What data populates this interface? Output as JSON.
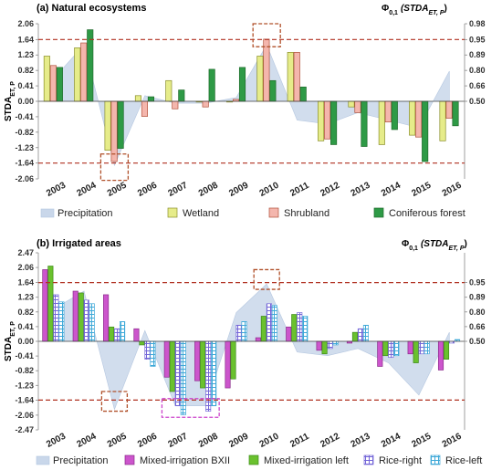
{
  "chart_data": [
    {
      "type": "bar",
      "title": "(a) Natural ecosystems",
      "ylabel": "STDA_ET, P",
      "ylabel_main": "STDA",
      "ylabel_sub": "ET, P",
      "right_label": "Φ0,1 (STDA_ET, P)",
      "right_label_main": "Φ",
      "right_label_sub": "0,1",
      "right_label_paren": "(STDA",
      "right_label_paren_sub": "ET, P",
      "right_label_close": ")",
      "categories": [
        "2003",
        "2004",
        "2005",
        "2006",
        "2007",
        "2008",
        "2009",
        "2010",
        "2011",
        "2012",
        "2013",
        "2014",
        "2015",
        "2016"
      ],
      "ylim": [
        -2.06,
        2.06
      ],
      "yticks": [
        "2.06",
        "1.64",
        "1.23",
        "0.82",
        "0.41",
        "0.00",
        "-0.41",
        "-0.82",
        "-1.23",
        "-1.64",
        "-2.06"
      ],
      "right_ticks": [
        "0.98",
        "0.95",
        "0.89",
        "0.80",
        "0.66",
        "0.50"
      ],
      "reference_lines": [
        1.64,
        -1.64
      ],
      "area_series": {
        "name": "Precipitation",
        "values": [
          0.6,
          1.5,
          -1.7,
          0.15,
          -0.05,
          -0.05,
          0.1,
          1.5,
          -0.5,
          -0.6,
          -0.3,
          -0.5,
          -0.7,
          0.8
        ]
      },
      "series": [
        {
          "name": "Wetland",
          "values": [
            1.2,
            1.42,
            -1.3,
            0.15,
            0.55,
            -0.02,
            -0.02,
            1.2,
            1.3,
            -1.05,
            -0.15,
            -1.15,
            -0.9,
            -1.05
          ]
        },
        {
          "name": "Shrubland",
          "values": [
            0.95,
            1.55,
            -1.6,
            -0.4,
            -0.2,
            -0.15,
            0.05,
            1.65,
            1.3,
            -1.0,
            -0.3,
            -0.55,
            -0.95,
            -0.45
          ]
        },
        {
          "name": "Coniferous forest",
          "values": [
            0.9,
            1.9,
            -1.25,
            0.12,
            0.3,
            0.85,
            0.9,
            0.55,
            0.38,
            -1.15,
            -1.2,
            -0.75,
            -1.6,
            -0.65
          ]
        }
      ]
    },
    {
      "type": "bar",
      "title": "(b) Irrigated areas",
      "ylabel": "STDA_ET, P",
      "ylabel_main": "STDA",
      "ylabel_sub": "ET, P",
      "right_label": "Φ0,1 (STDA_ET, P)",
      "right_label_main": "Φ",
      "right_label_sub": "0,1",
      "right_label_paren": "(STDA",
      "right_label_paren_sub": "ET, P",
      "right_label_close": ")",
      "categories": [
        "2003",
        "2004",
        "2005",
        "2006",
        "2007",
        "2008",
        "2009",
        "2010",
        "2011",
        "2012",
        "2013",
        "2014",
        "2015",
        "2016"
      ],
      "ylim": [
        -2.47,
        2.47
      ],
      "yticks": [
        "2.47",
        "2.06",
        "1.64",
        "1.23",
        "0.82",
        "0.41",
        "0.00",
        "-0.41",
        "-0.82",
        "-1.23",
        "-1.64",
        "-2.06",
        "-2.47"
      ],
      "right_ticks": [
        "0.95",
        "0.89",
        "0.80",
        "0.66",
        "0.50"
      ],
      "reference_lines": [
        1.64,
        -1.64
      ],
      "area_series": {
        "name": "Precipitation",
        "values": [
          0.9,
          1.4,
          -1.9,
          0.3,
          -1.8,
          -1.8,
          0.8,
          1.6,
          -0.3,
          -0.4,
          -0.2,
          -0.6,
          -1.5,
          0.25
        ]
      },
      "series": [
        {
          "name": "Mixed-irrigation BXII",
          "values": [
            2.0,
            1.4,
            1.3,
            0.35,
            -1.0,
            -1.1,
            -1.3,
            0.1,
            0.4,
            -0.25,
            -0.05,
            -0.7,
            -0.35,
            -0.8
          ]
        },
        {
          "name": "Mixed-irrigation left",
          "values": [
            2.1,
            1.35,
            0.4,
            -0.1,
            -1.4,
            -1.3,
            -1.05,
            0.7,
            0.75,
            -0.35,
            0.25,
            -0.4,
            -0.6,
            -0.5
          ]
        },
        {
          "name": "Rice-right",
          "values": [
            1.3,
            1.15,
            0.35,
            -0.5,
            -1.8,
            -1.95,
            0.45,
            1.05,
            0.8,
            -0.2,
            0.35,
            -0.45,
            -0.35,
            -0.05
          ]
        },
        {
          "name": "Rice-left",
          "values": [
            1.1,
            1.05,
            0.55,
            -0.7,
            -2.05,
            -1.8,
            0.55,
            1.0,
            0.7,
            -0.1,
            0.45,
            -0.4,
            -0.35,
            0.05
          ]
        }
      ]
    }
  ],
  "colors": {
    "area": "#c9d7ea",
    "wetland": "#e6ec8a",
    "shrubland": "#f4b6ad",
    "coniferous": "#2e9a46",
    "bxii": "#cc55cc",
    "mixedleft": "#6ac12e",
    "riceright": "#9a8ee6",
    "riceleft": "#8fd4f0",
    "refline": "#b03020",
    "highlight_brown": "#b0502a",
    "highlight_magenta": "#cc44cc"
  }
}
